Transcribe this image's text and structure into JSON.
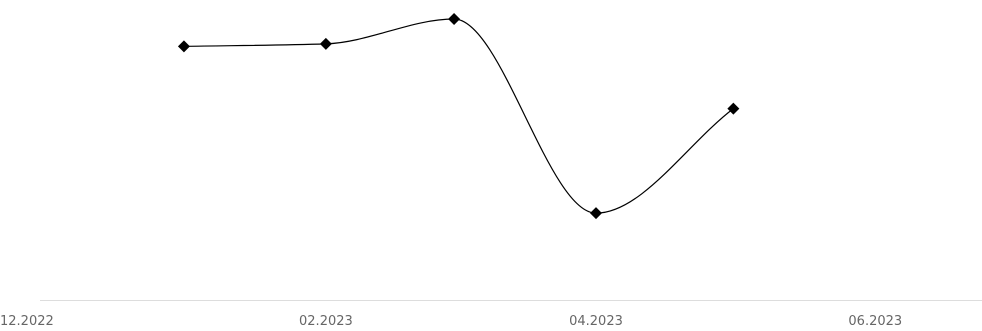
{
  "chart_data": {
    "type": "line",
    "title": "",
    "xlabel": "",
    "ylabel": "",
    "x_tick_labels": [
      {
        "label": "12.2022",
        "date": "2022-12-01"
      },
      {
        "label": "02.2023",
        "date": "2023-02-01"
      },
      {
        "label": "04.2023",
        "date": "2023-04-01"
      },
      {
        "label": "06.2023",
        "date": "2023-06-01"
      }
    ],
    "y_ticks_visible": false,
    "grid": false,
    "legend": "none",
    "smooth": true,
    "marker": "diamond",
    "line_color": "#000000",
    "axis_color": "#dddddd",
    "tick_label_color": "#666666",
    "ylim": [
      0,
      100
    ],
    "series": [
      {
        "points": [
          {
            "date": "2023-01-01",
            "y": 83
          },
          {
            "date": "2023-02-01",
            "y": 84
          },
          {
            "date": "2023-03-01",
            "y": 94
          },
          {
            "date": "2023-04-01",
            "y": 16
          },
          {
            "date": "2023-05-01",
            "y": 58
          }
        ]
      }
    ]
  }
}
